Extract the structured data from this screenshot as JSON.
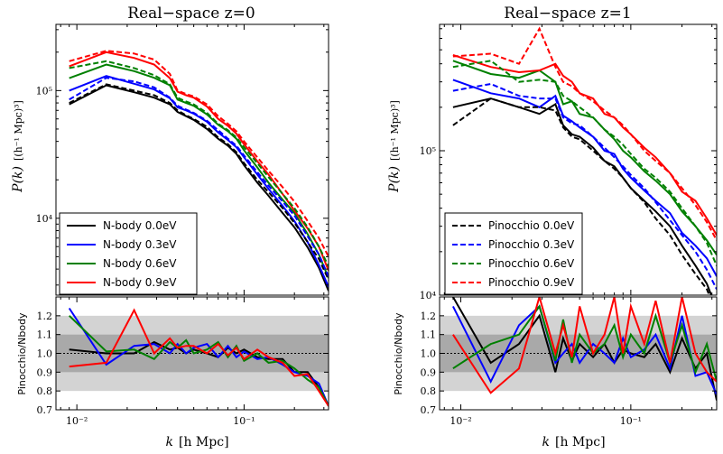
{
  "figure_colors": {
    "N-body 0.0eV": "#000000",
    "N-body 0.3eV": "#0000ff",
    "N-body 0.6eV": "#008000",
    "N-body 0.9eV": "#ff0000",
    "band_outer": "#d3d3d3",
    "band_inner": "#a9a9a9"
  },
  "xlabel_k": "k",
  "xlabel_unit": "[h Mpc]",
  "chart_data": [
    {
      "type": "line",
      "title": "Real−space  z=0",
      "ylabel_main": "P(k)",
      "ylabel_unit": "[(h⁻¹ Mpc)³]",
      "ylabel_ratio": "Pinocchio/Nbody",
      "xscale": "log",
      "yscale": "log",
      "xlim": [
        0.0075,
        0.32
      ],
      "ylim": [
        2500,
        330000
      ],
      "x_tick_labels": [
        "10⁻²",
        "10⁻¹"
      ],
      "x_tick_values": [
        0.01,
        0.1
      ],
      "y_tick_labels": [
        "10⁴",
        "10⁵"
      ],
      "y_tick_values": [
        10000,
        100000
      ],
      "ratio_ylim": [
        0.7,
        1.3
      ],
      "ratio_ticks": [
        "0.7",
        "0.8",
        "0.9",
        "1.0",
        "1.1",
        "1.2"
      ],
      "ratio_tick_values": [
        0.7,
        0.8,
        0.9,
        1.0,
        1.1,
        1.2
      ],
      "ratio_bands": {
        "outer": [
          0.8,
          1.2
        ],
        "inner": [
          0.9,
          1.1
        ]
      },
      "legend": [
        "N-body 0.0eV",
        "N-body 0.3eV",
        "N-body 0.6eV",
        "N-body 0.9eV"
      ],
      "legend_position": "lower-left",
      "x": [
        0.009,
        0.015,
        0.022,
        0.029,
        0.036,
        0.04,
        0.045,
        0.05,
        0.06,
        0.07,
        0.08,
        0.09,
        0.1,
        0.12,
        0.14,
        0.17,
        0.2,
        0.24,
        0.28,
        0.32
      ],
      "series": [
        {
          "name": "N-body 0.0eV",
          "style": "solid",
          "values": [
            78000,
            110000,
            97000,
            88000,
            78000,
            68000,
            63000,
            59000,
            50000,
            42000,
            37000,
            32000,
            26000,
            19000,
            15000,
            11000,
            8500,
            5900,
            4100,
            2700
          ]
        },
        {
          "name": "N-body 0.3eV",
          "style": "solid",
          "values": [
            100000,
            130000,
            113000,
            102000,
            87000,
            74000,
            70000,
            66000,
            57000,
            47000,
            41000,
            36000,
            30000,
            22000,
            17000,
            12500,
            9500,
            6500,
            4300,
            2900
          ]
        },
        {
          "name": "N-body 0.6eV",
          "style": "solid",
          "values": [
            125000,
            160000,
            142000,
            126000,
            110000,
            85000,
            80000,
            76000,
            65000,
            54000,
            48000,
            42000,
            34000,
            25000,
            19000,
            14000,
            11000,
            7500,
            5200,
            3400
          ]
        },
        {
          "name": "N-body 0.9eV",
          "style": "solid",
          "values": [
            155000,
            200000,
            180000,
            160000,
            125000,
            98000,
            92000,
            88000,
            75000,
            60000,
            53000,
            46000,
            38000,
            28000,
            22000,
            15500,
            11500,
            8300,
            6000,
            3900
          ]
        },
        {
          "name": "Pinocchio 0.0eV",
          "style": "dashed",
          "values": [
            80000,
            112000,
            100000,
            92000,
            80000,
            70000,
            64000,
            60000,
            52000,
            43000,
            38000,
            33000,
            27000,
            20000,
            16000,
            12000,
            9200,
            6500,
            4800,
            3300
          ]
        },
        {
          "name": "Pinocchio 0.3eV",
          "style": "dashed",
          "values": [
            85000,
            126000,
            118000,
            106000,
            88000,
            76000,
            71000,
            67000,
            58000,
            49000,
            42000,
            37000,
            31000,
            23000,
            18000,
            13500,
            10500,
            7200,
            5200,
            3500
          ]
        },
        {
          "name": "Pinocchio 0.6eV",
          "style": "dashed",
          "values": [
            150000,
            170000,
            150000,
            132000,
            112000,
            88000,
            82000,
            78000,
            67000,
            55000,
            49000,
            43000,
            36000,
            27000,
            21000,
            15500,
            12000,
            8500,
            6000,
            4200
          ]
        },
        {
          "name": "Pinocchio 0.9eV",
          "style": "dashed",
          "values": [
            170000,
            205000,
            195000,
            175000,
            135000,
            100000,
            94000,
            90000,
            78000,
            63000,
            55000,
            48000,
            40000,
            30000,
            23500,
            17500,
            13500,
            9500,
            7000,
            5000
          ]
        }
      ],
      "ratio_series": [
        {
          "name": "0.0eV",
          "values": [
            1.02,
            1.0,
            1.0,
            1.06,
            1.02,
            1.03,
            1.0,
            1.02,
            1.0,
            0.98,
            1.03,
            1.0,
            1.02,
            0.98,
            0.97,
            0.97,
            0.9,
            0.9,
            0.82,
            0.72
          ]
        },
        {
          "name": "0.3eV",
          "values": [
            1.24,
            0.94,
            1.04,
            1.05,
            1.0,
            1.05,
            1.0,
            1.03,
            1.05,
            0.98,
            1.04,
            0.98,
            1.01,
            0.97,
            0.98,
            0.94,
            0.9,
            0.88,
            0.84,
            0.72
          ]
        },
        {
          "name": "0.6eV",
          "values": [
            1.2,
            1.01,
            1.02,
            0.97,
            1.06,
            1.03,
            1.07,
            1.0,
            1.02,
            1.06,
            0.98,
            1.04,
            0.96,
            1.0,
            0.95,
            0.96,
            0.92,
            0.86,
            0.82,
            0.72
          ]
        },
        {
          "name": "0.9eV",
          "values": [
            0.93,
            0.95,
            1.23,
            1.0,
            1.08,
            1.03,
            1.04,
            1.04,
            1.0,
            1.05,
            0.99,
            1.03,
            0.97,
            1.02,
            0.98,
            0.95,
            0.88,
            0.89,
            0.8,
            0.72
          ]
        }
      ]
    },
    {
      "type": "line",
      "title": "Real−space  z=1",
      "ylabel_main": "P(k)",
      "ylabel_unit": "[(h⁻¹ Mpc)³]",
      "ylabel_ratio": "Pinocchio/Nbody",
      "xscale": "log",
      "yscale": "log",
      "xlim": [
        0.0075,
        0.32
      ],
      "ylim": [
        10000,
        750000
      ],
      "x_tick_labels": [
        "10⁻²",
        "10⁻¹"
      ],
      "x_tick_values": [
        0.01,
        0.1
      ],
      "y_tick_labels": [
        "10⁴",
        "10⁵"
      ],
      "y_tick_values": [
        10000,
        100000
      ],
      "ratio_ylim": [
        0.7,
        1.3
      ],
      "ratio_ticks": [
        "0.7",
        "0.8",
        "0.9",
        "1.0",
        "1.1",
        "1.2"
      ],
      "ratio_tick_values": [
        0.7,
        0.8,
        0.9,
        1.0,
        1.1,
        1.2
      ],
      "ratio_bands": {
        "outer": [
          0.8,
          1.2
        ],
        "inner": [
          0.9,
          1.1
        ]
      },
      "legend": [
        "Pinocchio 0.0eV",
        "Pinocchio 0.3eV",
        "Pinocchio 0.6eV",
        "Pinocchio 0.9eV"
      ],
      "legend_position": "lower-left",
      "x": [
        0.009,
        0.015,
        0.022,
        0.029,
        0.036,
        0.04,
        0.045,
        0.05,
        0.06,
        0.07,
        0.08,
        0.09,
        0.1,
        0.12,
        0.14,
        0.17,
        0.2,
        0.24,
        0.28,
        0.32
      ],
      "series": [
        {
          "name": "N-body 0.0eV",
          "style": "solid",
          "values": [
            200000,
            230000,
            200000,
            180000,
            210000,
            150000,
            130000,
            125000,
            105000,
            85000,
            78000,
            65000,
            55000,
            45000,
            38000,
            30000,
            22000,
            16000,
            12000,
            8000
          ]
        },
        {
          "name": "N-body 0.3eV",
          "style": "solid",
          "values": [
            310000,
            250000,
            230000,
            200000,
            240000,
            175000,
            160000,
            145000,
            125000,
            100000,
            95000,
            75000,
            65000,
            53000,
            45000,
            37000,
            27000,
            22000,
            18000,
            13500
          ]
        },
        {
          "name": "N-body 0.6eV",
          "style": "solid",
          "values": [
            420000,
            340000,
            320000,
            360000,
            300000,
            210000,
            220000,
            180000,
            170000,
            140000,
            120000,
            100000,
            90000,
            72000,
            62000,
            50000,
            38000,
            30000,
            24000,
            19000
          ]
        },
        {
          "name": "N-body 0.9eV",
          "style": "solid",
          "values": [
            460000,
            380000,
            350000,
            360000,
            400000,
            330000,
            300000,
            250000,
            230000,
            180000,
            170000,
            145000,
            130000,
            105000,
            90000,
            70000,
            52000,
            45000,
            34000,
            26000
          ]
        },
        {
          "name": "Pinocchio 0.0eV",
          "style": "dashed",
          "values": [
            150000,
            230000,
            200000,
            200000,
            190000,
            145000,
            125000,
            120000,
            100000,
            85000,
            75000,
            65000,
            55000,
            44000,
            34000,
            26000,
            19000,
            14000,
            11000,
            7500
          ]
        },
        {
          "name": "Pinocchio 0.3eV",
          "style": "dashed",
          "values": [
            260000,
            290000,
            240000,
            230000,
            230000,
            170000,
            155000,
            150000,
            125000,
            105000,
            90000,
            78000,
            68000,
            55000,
            44000,
            33000,
            26000,
            20000,
            15000,
            11000
          ]
        },
        {
          "name": "Pinocchio 0.6eV",
          "style": "dashed",
          "values": [
            380000,
            420000,
            300000,
            310000,
            300000,
            240000,
            220000,
            200000,
            170000,
            140000,
            125000,
            110000,
            95000,
            75000,
            65000,
            52000,
            40000,
            30000,
            23000,
            16000
          ]
        },
        {
          "name": "Pinocchio 0.9eV",
          "style": "dashed",
          "values": [
            450000,
            470000,
            400000,
            700000,
            380000,
            300000,
            280000,
            250000,
            220000,
            190000,
            170000,
            150000,
            130000,
            100000,
            85000,
            70000,
            55000,
            42000,
            32000,
            24000
          ]
        }
      ],
      "ratio_series": [
        {
          "name": "0.0eV",
          "values": [
            1.3,
            0.95,
            1.05,
            1.2,
            0.9,
            1.08,
            0.96,
            1.05,
            0.98,
            1.05,
            0.95,
            1.02,
            1.0,
            0.98,
            1.05,
            0.9,
            1.08,
            0.92,
            1.0,
            0.75
          ]
        },
        {
          "name": "0.3eV",
          "values": [
            1.25,
            0.85,
            1.15,
            1.25,
            0.95,
            1.0,
            1.05,
            0.95,
            1.05,
            1.0,
            0.95,
            1.08,
            0.98,
            1.02,
            1.1,
            0.92,
            1.2,
            0.88,
            0.9,
            0.78
          ]
        },
        {
          "name": "0.6eV",
          "values": [
            0.92,
            1.05,
            1.1,
            1.25,
            0.96,
            1.18,
            0.95,
            1.1,
            1.0,
            1.05,
            1.15,
            0.98,
            1.1,
            1.0,
            1.2,
            0.95,
            1.15,
            0.9,
            1.05,
            0.85
          ]
        },
        {
          "name": "0.9eV",
          "values": [
            1.1,
            0.79,
            0.92,
            1.3,
            1.0,
            1.15,
            0.98,
            1.25,
            1.0,
            1.1,
            1.3,
            1.0,
            1.25,
            1.05,
            1.28,
            0.95,
            1.3,
            1.0,
            0.9,
            0.85
          ]
        }
      ]
    }
  ]
}
